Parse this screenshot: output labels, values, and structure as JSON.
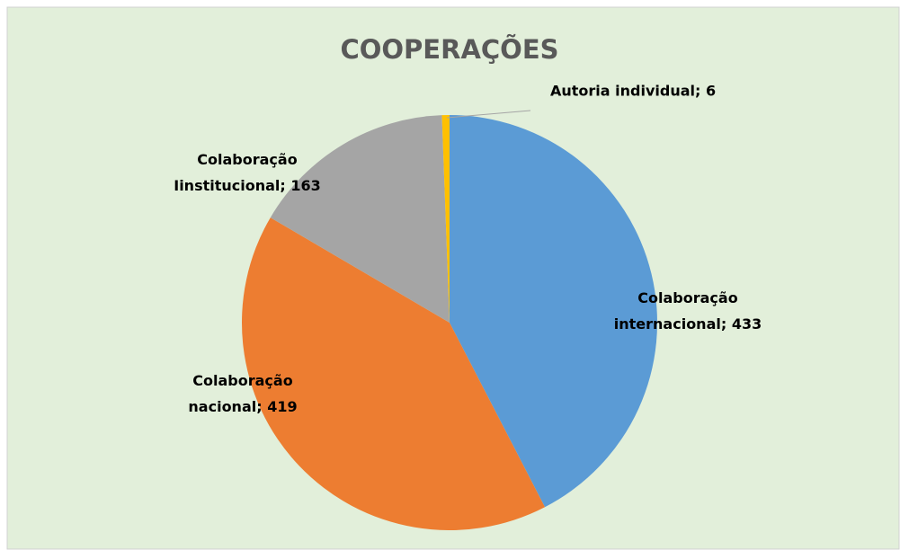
{
  "chart_data": {
    "type": "pie",
    "title": "COOPERAÇÕES",
    "values": [
      433,
      419,
      163,
      6
    ],
    "value_labels": [
      "Colaboração internacional; 433",
      "Colaboração nacional; 419",
      "Colaboração Iinstitucional; 163",
      "Autoria individual; 6"
    ],
    "colors": [
      "#5B9BD5",
      "#ED7D31",
      "#A5A5A5",
      "#FFC000"
    ]
  }
}
